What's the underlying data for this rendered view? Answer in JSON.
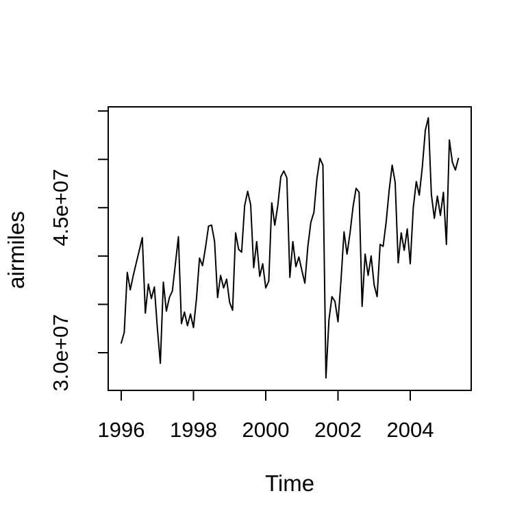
{
  "page": {
    "background_color": "#ffffff",
    "foreground_color": "#000000"
  },
  "chart_data": {
    "type": "line",
    "title": "",
    "xlabel": "Time",
    "ylabel": "airmiles",
    "grid": false,
    "legend_position": "none",
    "line_color": "#000000",
    "x_axis": {
      "ticks": [
        1996,
        1998,
        2000,
        2002,
        2004
      ],
      "tick_labels": [
        "1996",
        "1998",
        "2000",
        "2002",
        "2004"
      ],
      "range": [
        1995.95,
        2005.42
      ]
    },
    "y_axis": {
      "ticks": [
        30000000,
        35000000,
        40000000,
        45000000,
        50000000,
        55000000
      ],
      "labeled_ticks": [
        {
          "value": 30000000,
          "text": "3.0e+07"
        },
        {
          "value": 45000000,
          "text": "4.5e+07"
        }
      ],
      "range": [
        26100000,
        55400000
      ]
    },
    "series": [
      {
        "name": "airmiles",
        "start_year": 1996,
        "start_month": 1,
        "frequency": "monthly",
        "values": [
          31000000,
          32100000,
          38300000,
          36500000,
          38000000,
          39300000,
          40600000,
          41900000,
          34100000,
          37100000,
          35600000,
          36800000,
          32500000,
          28900000,
          37300000,
          34300000,
          35700000,
          36400000,
          39200000,
          42000000,
          33000000,
          34200000,
          32800000,
          34000000,
          32600000,
          35600000,
          39800000,
          39000000,
          40900000,
          43100000,
          43200000,
          41500000,
          35700000,
          38000000,
          36700000,
          37600000,
          35200000,
          34400000,
          42400000,
          40700000,
          40400000,
          45200000,
          46700000,
          45300000,
          38800000,
          41500000,
          37900000,
          39200000,
          36700000,
          37400000,
          45500000,
          43200000,
          45200000,
          48200000,
          48800000,
          48100000,
          37800000,
          41500000,
          38900000,
          39900000,
          38500000,
          37200000,
          41000000,
          43500000,
          44500000,
          48000000,
          50100000,
          49400000,
          27400000,
          33400000,
          35800000,
          35300000,
          33200000,
          37500000,
          42500000,
          40200000,
          42400000,
          45100000,
          47000000,
          46600000,
          34800000,
          40200000,
          38000000,
          40000000,
          37000000,
          35800000,
          41200000,
          41000000,
          43500000,
          46800000,
          49400000,
          47600000,
          39300000,
          42400000,
          40600000,
          42800000,
          39200000,
          45000000,
          47700000,
          46300000,
          49200000,
          53000000,
          54300000,
          46400000,
          43900000,
          46200000,
          44200000,
          46600000,
          41200000,
          52000000,
          49700000,
          48900000,
          50100000
        ]
      }
    ]
  }
}
